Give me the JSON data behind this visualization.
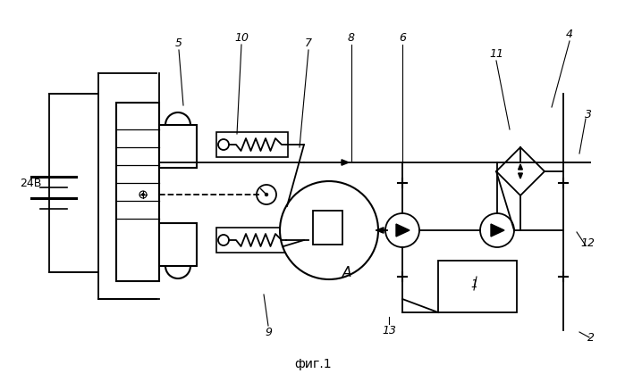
{
  "bg_color": "#ffffff",
  "line_color": "#000000",
  "fig_title": "фиг.1",
  "battery_label": "24В",
  "alt_label": "А"
}
